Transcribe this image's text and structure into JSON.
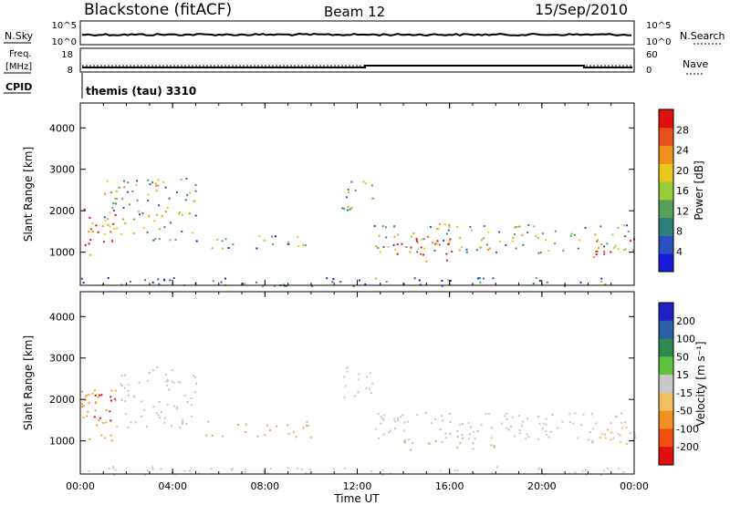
{
  "header": {
    "station": "Blackstone (fitACF)",
    "beam": "Beam 12",
    "date": "15/Sep/2010",
    "cpid_label": "CPID",
    "cpid_value": "themis (tau) 3310"
  },
  "noise_panel": {
    "left_label": "N.Sky",
    "right_label": "N.Search",
    "left_ticks": [
      "10^5",
      "10^0"
    ],
    "right_ticks": [
      "10^5",
      "10^0"
    ]
  },
  "freq_panel": {
    "left_label_1": "Freq.",
    "left_label_2": "[MHz]",
    "right_label": "Nave",
    "left_ticks": [
      "18",
      "8"
    ],
    "right_ticks": [
      "60",
      "0"
    ]
  },
  "time_axis": {
    "ticks": [
      "00:00",
      "04:00",
      "08:00",
      "12:00",
      "16:00",
      "20:00",
      "00:00"
    ],
    "label": "Time UT"
  },
  "chart_data": [
    {
      "type": "heatmap",
      "name": "power",
      "ylabel": "Slant Range [km]",
      "yticks": [
        "1000",
        "2000",
        "3000",
        "4000"
      ],
      "ylim": [
        200,
        4600
      ],
      "xlim": [
        0,
        24
      ],
      "colorbar_label": "Power [dB]",
      "colorbar_ticks": [
        "4",
        "8",
        "12",
        "16",
        "20",
        "24",
        "28"
      ],
      "colorbar_colors": [
        "#1a1adb",
        "#2a50c0",
        "#2e7f7a",
        "#55a05a",
        "#9acc38",
        "#e8c81a",
        "#f0901a",
        "#e8501a",
        "#e01010"
      ],
      "bands": [
        {
          "t0": 0.0,
          "t1": 1.5,
          "r0": 900,
          "r1": 2200,
          "level": 0.8
        },
        {
          "t0": 1.0,
          "t1": 5.0,
          "r0": 1300,
          "r1": 2800,
          "level": 0.45
        },
        {
          "t0": 5.0,
          "t1": 10.0,
          "r0": 1100,
          "r1": 1500,
          "level": 0.35
        },
        {
          "t0": 11.3,
          "t1": 12.7,
          "r0": 2000,
          "r1": 2800,
          "level": 0.45
        },
        {
          "t0": 12.7,
          "t1": 24.0,
          "r0": 1000,
          "r1": 1700,
          "level": 0.45
        },
        {
          "t0": 13.5,
          "t1": 16.5,
          "r0": 800,
          "r1": 1400,
          "level": 0.9
        },
        {
          "t0": 22.0,
          "t1": 24.0,
          "r0": 900,
          "r1": 1400,
          "level": 0.8
        },
        {
          "t0": 0.0,
          "t1": 24.0,
          "r0": 200,
          "r1": 400,
          "level": 0.2
        }
      ]
    },
    {
      "type": "heatmap",
      "name": "velocity",
      "ylabel": "Slant Range [km]",
      "yticks": [
        "1000",
        "2000",
        "3000",
        "4000"
      ],
      "ylim": [
        200,
        4600
      ],
      "xlim": [
        0,
        24
      ],
      "colorbar_label": "Velocity [m s⁻¹]",
      "colorbar_ticks": [
        "200",
        "100",
        "50",
        "15",
        "-15",
        "-50",
        "-100",
        "-200"
      ],
      "colorbar_colors": [
        "#2020c8",
        "#2a60a8",
        "#2e8a50",
        "#60c040",
        "#c8c8c8",
        "#f0c060",
        "#f09020",
        "#f05010",
        "#e01010"
      ],
      "bands": [
        {
          "t0": 0.3,
          "t1": 1.5,
          "r0": 1500,
          "r1": 2200,
          "color": "#e01010"
        },
        {
          "t0": 0.0,
          "t1": 1.5,
          "r0": 900,
          "r1": 2400,
          "color": "#f0a040"
        },
        {
          "t0": 1.5,
          "t1": 5.0,
          "r0": 1300,
          "r1": 2800,
          "color": "#c8c8c8"
        },
        {
          "t0": 5.0,
          "t1": 10.0,
          "r0": 1100,
          "r1": 1500,
          "color": "#d8b070"
        },
        {
          "t0": 11.3,
          "t1": 12.7,
          "r0": 2000,
          "r1": 2800,
          "color": "#c8c8c8"
        },
        {
          "t0": 12.7,
          "t1": 24.0,
          "r0": 1000,
          "r1": 1700,
          "color": "#c8c8c8"
        },
        {
          "t0": 14.0,
          "t1": 18.0,
          "r0": 800,
          "r1": 1200,
          "color": "#9ad07a"
        },
        {
          "t0": 22.0,
          "t1": 24.0,
          "r0": 900,
          "r1": 1400,
          "color": "#f0c060"
        },
        {
          "t0": 0.0,
          "t1": 24.0,
          "r0": 200,
          "r1": 400,
          "color": "#c8c8c8"
        }
      ]
    }
  ]
}
